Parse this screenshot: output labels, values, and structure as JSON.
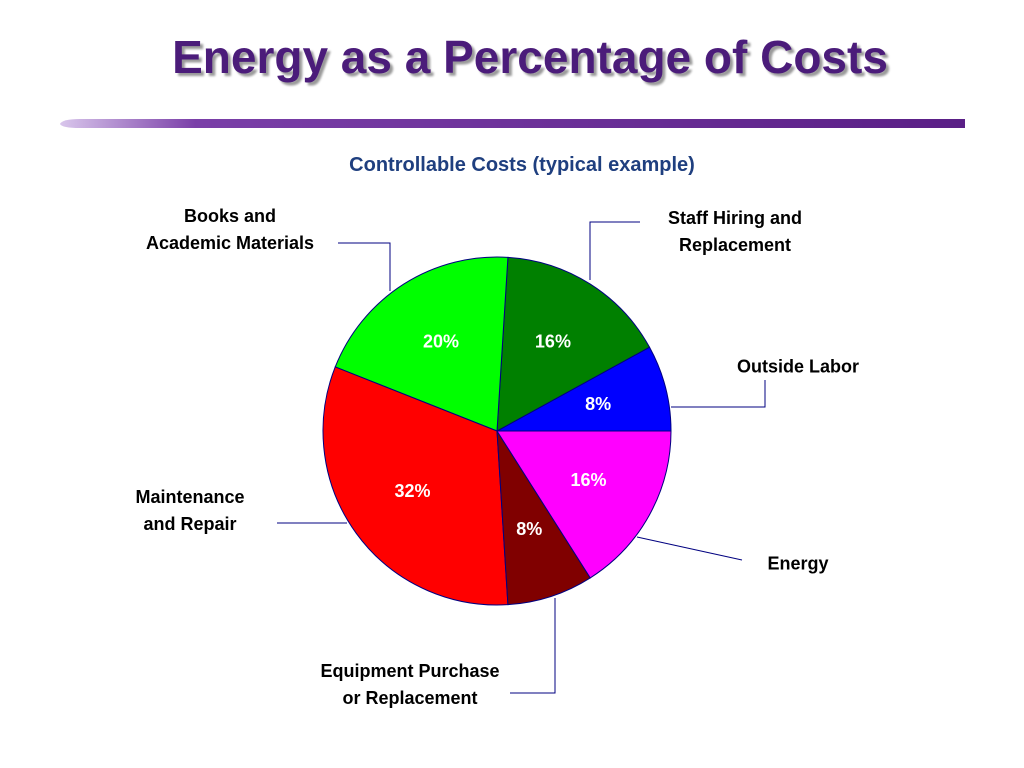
{
  "chart_data": {
    "type": "pie",
    "title": "Energy as a Percentage of Costs",
    "subtitle": "Controllable Costs (typical example)",
    "categories": [
      "Outside Labor",
      "Staff Hiring and\nReplacement",
      "Books and\nAcademic Materials",
      "Maintenance\nand Repair",
      "Equipment Purchase\nor Replacement",
      "Energy"
    ],
    "values": [
      8,
      16,
      20,
      32,
      8,
      16
    ],
    "value_labels": [
      "8%",
      "16%",
      "20%",
      "32%",
      "8%",
      "16%"
    ],
    "colors": [
      "#0000ff",
      "#008000",
      "#00ff00",
      "#ff0000",
      "#800000",
      "#ff00ff"
    ]
  }
}
